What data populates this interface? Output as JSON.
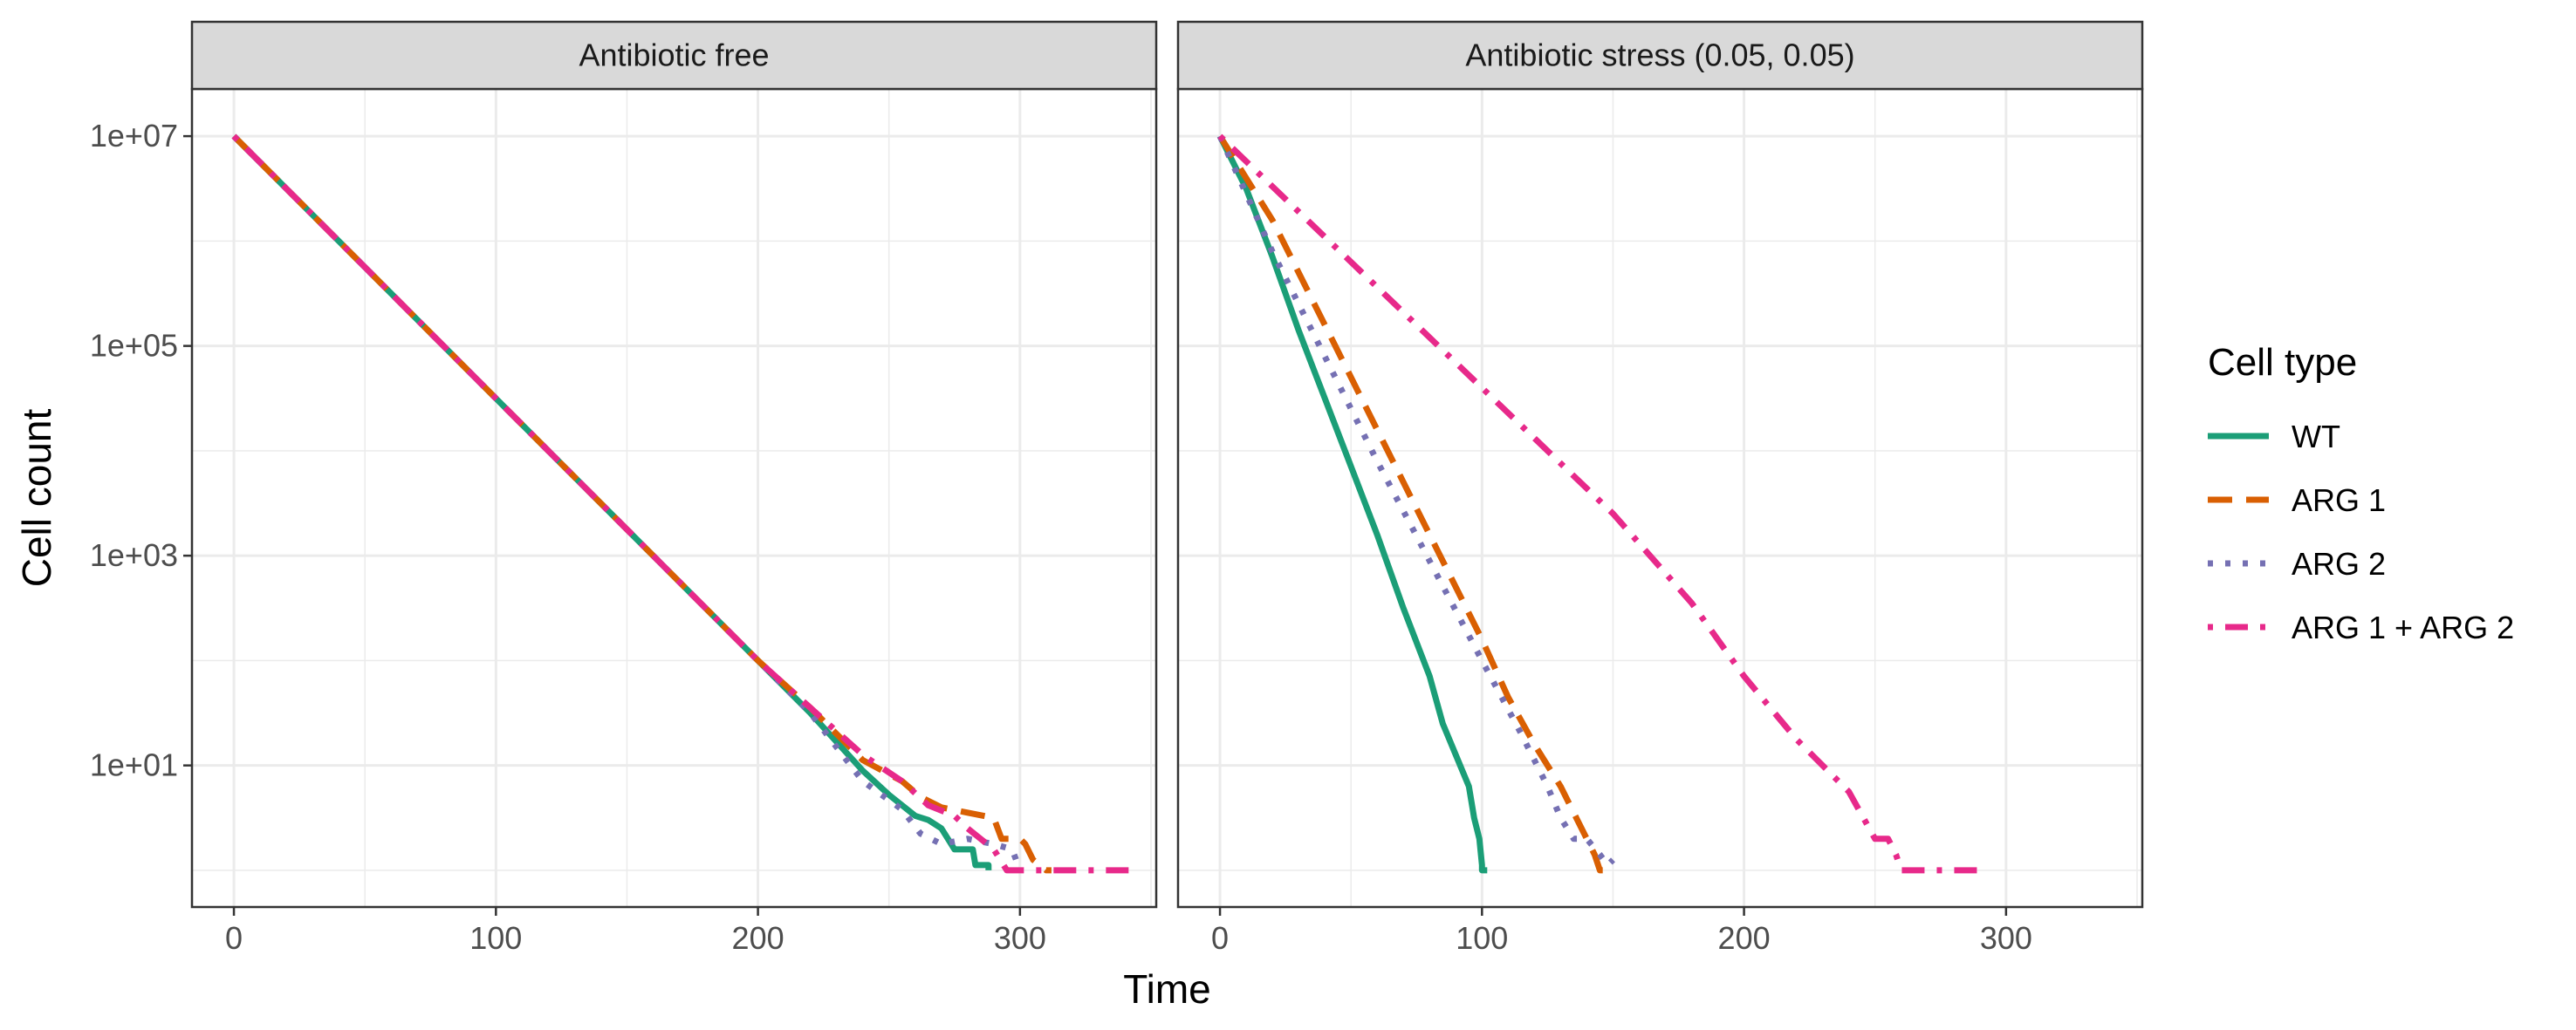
{
  "chart_data": {
    "type": "line",
    "xlabel": "Time",
    "ylabel": "Cell count",
    "xlim": [
      -16,
      352
    ],
    "xticks": [
      0,
      100,
      200,
      300
    ],
    "xtick_labels": [
      "0",
      "100",
      "200",
      "300"
    ],
    "ylog10": true,
    "ylim_log10": [
      -0.35,
      7.45
    ],
    "yticks_log10": [
      1,
      3,
      5,
      7
    ],
    "ytick_labels": [
      "1e+01",
      "1e+03",
      "1e+05",
      "1e+07"
    ],
    "grid": true,
    "legend": {
      "title": "Cell type",
      "position": "right",
      "entries": [
        "WT",
        "ARG 1",
        "ARG 2",
        "ARG 1 + ARG 2"
      ]
    },
    "series_style": [
      {
        "name": "WT",
        "color": "#1b9e77",
        "dash": "solid"
      },
      {
        "name": "ARG 1",
        "color": "#d95f02",
        "dash": "dashed"
      },
      {
        "name": "ARG 2",
        "color": "#7570b3",
        "dash": "dotted"
      },
      {
        "name": "ARG 1 + ARG 2",
        "color": "#e7298a",
        "dash": "dotdash"
      }
    ],
    "panels": [
      {
        "title": "Antibiotic free",
        "series": [
          {
            "name": "WT",
            "points": [
              [
                0,
                7
              ],
              [
                50,
                5.75
              ],
              [
                100,
                4.5
              ],
              [
                150,
                3.25
              ],
              [
                200,
                2.0
              ],
              [
                220,
                1.5
              ],
              [
                240,
                0.95
              ],
              [
                250,
                0.72
              ],
              [
                260,
                0.52
              ],
              [
                265,
                0.48
              ],
              [
                270,
                0.4
              ],
              [
                275,
                0.2
              ],
              [
                282,
                0.2
              ],
              [
                283,
                0.05
              ],
              [
                288,
                0.05
              ],
              [
                288,
                0
              ]
            ]
          },
          {
            "name": "ARG 1",
            "points": [
              [
                0,
                7
              ],
              [
                50,
                5.75
              ],
              [
                100,
                4.5
              ],
              [
                150,
                3.25
              ],
              [
                200,
                2.0
              ],
              [
                220,
                1.55
              ],
              [
                240,
                1.05
              ],
              [
                255,
                0.85
              ],
              [
                262,
                0.7
              ],
              [
                270,
                0.6
              ],
              [
                280,
                0.55
              ],
              [
                290,
                0.5
              ],
              [
                293,
                0.3
              ],
              [
                300,
                0.3
              ],
              [
                302,
                0.25
              ],
              [
                305,
                0.1
              ],
              [
                310,
                0
              ],
              [
                312,
                0
              ]
            ]
          },
          {
            "name": "ARG 2",
            "points": [
              [
                0,
                7
              ],
              [
                50,
                5.75
              ],
              [
                100,
                4.5
              ],
              [
                150,
                3.25
              ],
              [
                200,
                2.0
              ],
              [
                220,
                1.5
              ],
              [
                240,
                0.85
              ],
              [
                255,
                0.58
              ],
              [
                262,
                0.35
              ],
              [
                270,
                0.25
              ],
              [
                280,
                0.3
              ],
              [
                290,
                0.25
              ],
              [
                297,
                0.2
              ],
              [
                300,
                0
              ]
            ]
          },
          {
            "name": "ARG 1 + ARG 2",
            "points": [
              [
                0,
                7
              ],
              [
                50,
                5.75
              ],
              [
                100,
                4.5
              ],
              [
                150,
                3.25
              ],
              [
                200,
                2.0
              ],
              [
                220,
                1.55
              ],
              [
                240,
                1.1
              ],
              [
                255,
                0.85
              ],
              [
                265,
                0.62
              ],
              [
                275,
                0.52
              ],
              [
                280,
                0.4
              ],
              [
                285,
                0.3
              ],
              [
                290,
                0.2
              ],
              [
                295,
                0
              ],
              [
                343,
                0
              ]
            ]
          }
        ]
      },
      {
        "title": "Antibiotic stress (0.05, 0.05)",
        "series": [
          {
            "name": "WT",
            "points": [
              [
                0,
                7
              ],
              [
                10,
                6.5
              ],
              [
                20,
                5.85
              ],
              [
                30,
                5.15
              ],
              [
                40,
                4.5
              ],
              [
                50,
                3.85
              ],
              [
                60,
                3.2
              ],
              [
                70,
                2.5
              ],
              [
                80,
                1.85
              ],
              [
                85,
                1.4
              ],
              [
                90,
                1.1
              ],
              [
                95,
                0.8
              ],
              [
                97,
                0.5
              ],
              [
                99,
                0.3
              ],
              [
                100,
                0.05
              ],
              [
                100,
                0
              ],
              [
                102,
                0
              ]
            ]
          },
          {
            "name": "ARG 1",
            "points": [
              [
                0,
                7
              ],
              [
                20,
                6.2
              ],
              [
                40,
                5.2
              ],
              [
                60,
                4.2
              ],
              [
                80,
                3.2
              ],
              [
                100,
                2.2
              ],
              [
                110,
                1.65
              ],
              [
                120,
                1.2
              ],
              [
                130,
                0.8
              ],
              [
                135,
                0.55
              ],
              [
                140,
                0.3
              ],
              [
                143,
                0.15
              ],
              [
                145,
                0
              ],
              [
                150,
                0
              ]
            ]
          },
          {
            "name": "ARG 2",
            "points": [
              [
                0,
                7
              ],
              [
                20,
                5.9
              ],
              [
                40,
                4.9
              ],
              [
                60,
                3.9
              ],
              [
                80,
                2.95
              ],
              [
                100,
                2.0
              ],
              [
                115,
                1.3
              ],
              [
                125,
                0.8
              ],
              [
                130,
                0.5
              ],
              [
                135,
                0.3
              ],
              [
                140,
                0.3
              ],
              [
                145,
                0.15
              ],
              [
                148,
                0.05
              ],
              [
                150,
                0.1
              ]
            ]
          },
          {
            "name": "ARG 1 + ARG 2",
            "points": [
              [
                0,
                7
              ],
              [
                50,
                5.8
              ],
              [
                100,
                4.6
              ],
              [
                150,
                3.4
              ],
              [
                180,
                2.55
              ],
              [
                200,
                1.85
              ],
              [
                220,
                1.25
              ],
              [
                240,
                0.75
              ],
              [
                250,
                0.3
              ],
              [
                255,
                0.3
              ],
              [
                258,
                0.15
              ],
              [
                260,
                0
              ],
              [
                290,
                0
              ]
            ]
          }
        ]
      }
    ]
  }
}
